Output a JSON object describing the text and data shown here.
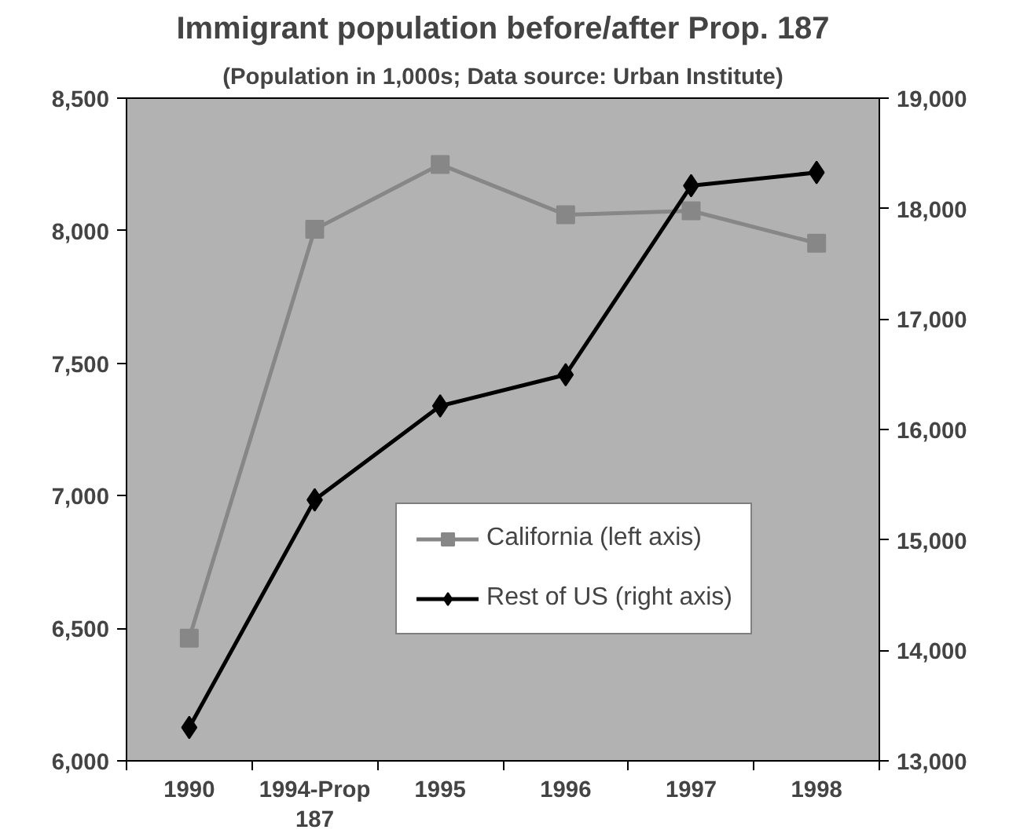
{
  "chart_data": {
    "type": "line",
    "title": "Immigrant population before/after Prop. 187",
    "subtitle": "(Population in 1,000s; Data source: Urban Institute)",
    "categories": [
      "1990",
      "1994-Prop 187",
      "1995",
      "1996",
      "1997",
      "1998"
    ],
    "series": [
      {
        "name": "California (left axis)",
        "color": "#878787",
        "marker": "square",
        "values": [
          6463,
          8005,
          8250,
          8060,
          8075,
          7953
        ]
      },
      {
        "name": "Rest of US (right axis)",
        "color": "#000000",
        "marker": "diamond",
        "axis": "y2",
        "values": [
          13302,
          15363,
          16213,
          16496,
          18207,
          18327
        ]
      }
    ],
    "ylim": [
      6000,
      8500
    ],
    "yticks": [
      {
        "value": 6000,
        "label": "6,000"
      },
      {
        "value": 6500,
        "label": "6,500"
      },
      {
        "value": 7000,
        "label": "7,000"
      },
      {
        "value": 7500,
        "label": "7,500"
      },
      {
        "value": 8000,
        "label": "8,000"
      },
      {
        "value": 8500,
        "label": "8,500"
      }
    ],
    "y2lim": [
      13000,
      19000
    ],
    "y2ticks": [
      {
        "value": 13000,
        "label": "13,000"
      },
      {
        "value": 14000,
        "label": "14,000"
      },
      {
        "value": 15000,
        "label": "15,000"
      },
      {
        "value": 16000,
        "label": "16,000"
      },
      {
        "value": 17000,
        "label": "17,000"
      },
      {
        "value": 18000,
        "label": "18,000"
      },
      {
        "value": 19000,
        "label": "19,000"
      }
    ],
    "grid": false,
    "legend": "bottom right",
    "line_style": "solid"
  }
}
